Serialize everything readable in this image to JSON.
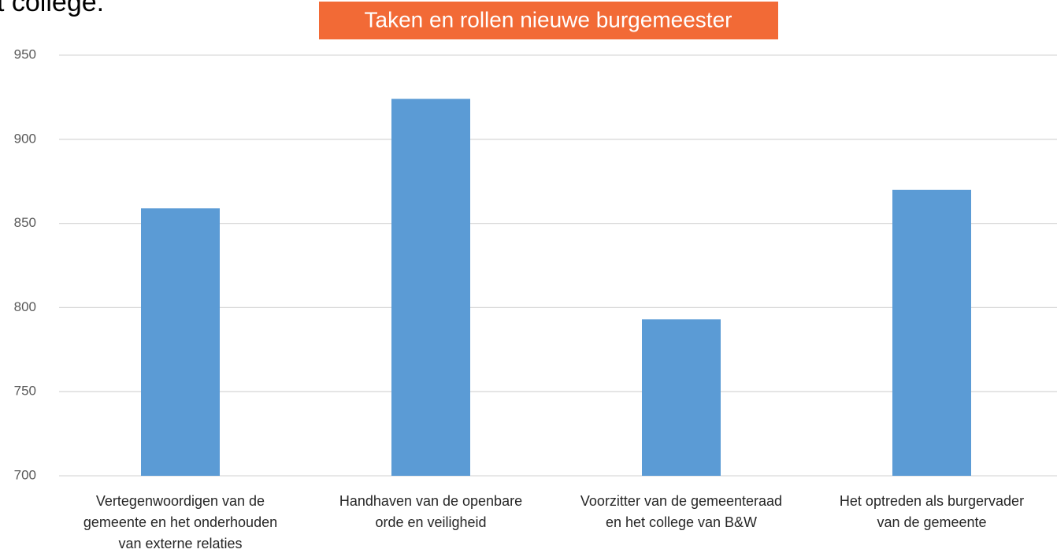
{
  "chart_data": {
    "type": "bar",
    "annotation": "t college.",
    "title": "Taken en rollen nieuwe burgemeester",
    "categories": [
      "Vertegenwoordigen van de\ngemeente en het onderhouden\nvan externe relaties",
      "Handhaven van de openbare\norde en veiligheid",
      "Voorzitter van de gemeenteraad\nen het college van B&W",
      "Het optreden als burgervader\nvan de gemeente"
    ],
    "values": [
      859,
      924,
      793,
      870
    ],
    "color": "#5b9bd5",
    "ylim": [
      700,
      950
    ],
    "yticks": [
      700,
      750,
      800,
      850,
      900,
      950
    ],
    "grid": true
  }
}
